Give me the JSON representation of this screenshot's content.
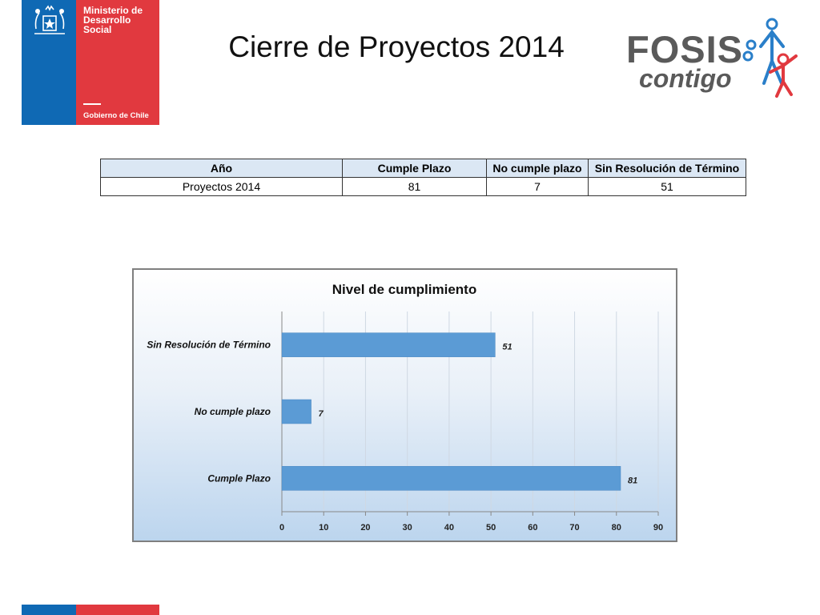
{
  "logo": {
    "ministry_name": "Ministerio de\nDesarrollo\nSocial",
    "government": "Gobierno de Chile",
    "colors": {
      "blue": "#0f69b4",
      "red": "#e1393f"
    }
  },
  "slide": {
    "title": "Cierre de Proyectos 2014"
  },
  "fosis_logo": {
    "word1": "FOSIS",
    "word2": "contigo",
    "colors": {
      "blue": "#2a7fc9",
      "red": "#e1393f",
      "gray": "#5a5a5a"
    }
  },
  "table": {
    "headers": [
      "Año",
      "Cumple Plazo",
      "No cumple plazo",
      "Sin Resolución de Término"
    ],
    "rows": [
      [
        "Proyectos 2014",
        "81",
        "7",
        "51"
      ]
    ]
  },
  "chart_data": {
    "type": "bar",
    "orientation": "horizontal",
    "title": "Nivel de cumplimiento",
    "categories": [
      "Sin Resolución de Término",
      "No cumple plazo",
      "Cumple Plazo"
    ],
    "values": [
      51,
      7,
      81
    ],
    "xlim": [
      0,
      90
    ],
    "xticks": [
      0,
      10,
      20,
      30,
      40,
      50,
      60,
      70,
      80,
      90
    ],
    "grid": true,
    "bar_color": "#5b9bd5"
  }
}
